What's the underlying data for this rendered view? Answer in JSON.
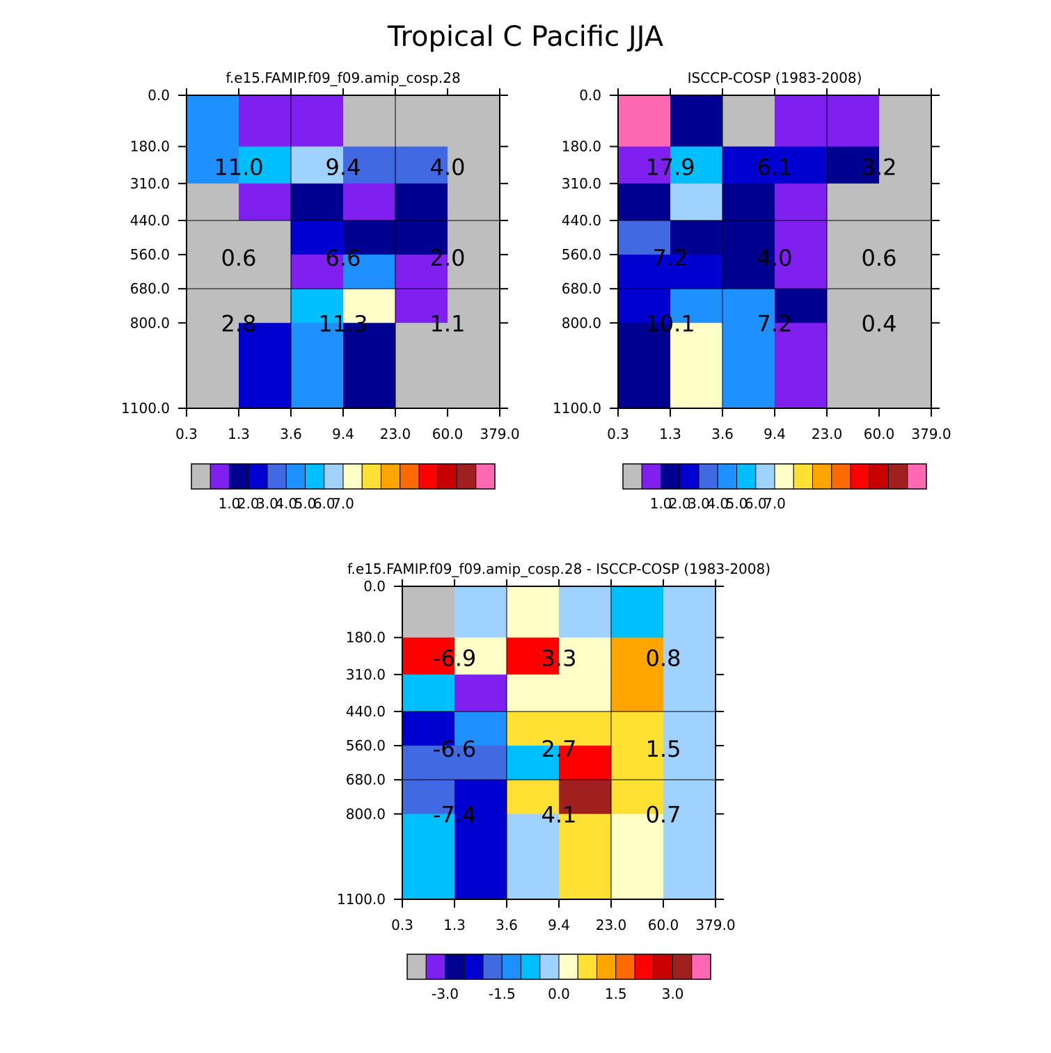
{
  "title": "Tropical C Pacific JJA",
  "chart_data": [
    {
      "type": "heatmap",
      "title": "f.e15.FAMIP.f09_f09.amip_cosp.28",
      "x_ticks": [
        "0.3",
        "1.3",
        "3.6",
        "9.4",
        "23.0",
        "60.0",
        "379.0"
      ],
      "y_ticks": [
        "0.0",
        "180.0",
        "310.0",
        "440.0",
        "560.0",
        "680.0",
        "800.0",
        "1100.0"
      ],
      "cell_levels": [
        [
          5,
          1,
          1,
          0,
          0,
          0
        ],
        [
          5,
          6,
          7,
          4,
          4,
          0
        ],
        [
          0,
          1,
          2,
          1,
          2,
          0
        ],
        [
          0,
          0,
          3,
          2,
          2,
          0
        ],
        [
          0,
          0,
          1,
          5,
          1,
          0
        ],
        [
          0,
          0,
          6,
          8,
          1,
          0
        ],
        [
          0,
          3,
          5,
          2,
          0,
          0
        ]
      ],
      "block_labels": [
        [
          "11.0",
          "9.4",
          "4.0"
        ],
        [
          "0.6",
          "6.6",
          "2.0"
        ],
        [
          "2.8",
          "11.3",
          "1.1"
        ]
      ],
      "colorbar": {
        "colors": [
          "#bebebe",
          "#8020f0",
          "#000090",
          "#0000d0",
          "#4169e1",
          "#1e90ff",
          "#00bfff",
          "#a0d2ff",
          "#ffffc8",
          "#ffe033",
          "#ffa500",
          "#ff6a00",
          "#ff0000",
          "#c80000",
          "#a02020",
          "#ff69b4"
        ],
        "labels": [
          "1.0",
          "2.0",
          "3.0",
          "4.0",
          "5.0",
          "6.0",
          "7.0"
        ]
      }
    },
    {
      "type": "heatmap",
      "title": "ISCCP-COSP (1983-2008)",
      "x_ticks": [
        "0.3",
        "1.3",
        "3.6",
        "9.4",
        "23.0",
        "60.0",
        "379.0"
      ],
      "y_ticks": [
        "0.0",
        "180.0",
        "310.0",
        "440.0",
        "560.0",
        "680.0",
        "800.0",
        "1100.0"
      ],
      "cell_levels": [
        [
          15,
          2,
          0,
          1,
          1,
          0
        ],
        [
          1,
          6,
          3,
          3,
          2,
          0
        ],
        [
          2,
          7,
          2,
          1,
          0,
          0
        ],
        [
          4,
          2,
          2,
          1,
          0,
          0
        ],
        [
          3,
          3,
          2,
          1,
          0,
          0
        ],
        [
          3,
          5,
          5,
          2,
          0,
          0
        ],
        [
          2,
          8,
          5,
          1,
          0,
          0
        ]
      ],
      "block_labels": [
        [
          "17.9",
          "6.1",
          "3.2"
        ],
        [
          "7.2",
          "4.0",
          "0.6"
        ],
        [
          "10.1",
          "7.2",
          "0.4"
        ]
      ],
      "colorbar": {
        "colors": [
          "#bebebe",
          "#8020f0",
          "#000090",
          "#0000d0",
          "#4169e1",
          "#1e90ff",
          "#00bfff",
          "#a0d2ff",
          "#ffffc8",
          "#ffe033",
          "#ffa500",
          "#ff6a00",
          "#ff0000",
          "#c80000",
          "#a02020",
          "#ff69b4"
        ],
        "labels": [
          "1.0",
          "2.0",
          "3.0",
          "4.0",
          "5.0",
          "6.0",
          "7.0"
        ]
      }
    },
    {
      "type": "heatmap",
      "title": "f.e15.FAMIP.f09_f09.amip_cosp.28 - ISCCP-COSP (1983-2008)",
      "x_ticks": [
        "0.3",
        "1.3",
        "3.6",
        "9.4",
        "23.0",
        "60.0",
        "379.0"
      ],
      "y_ticks": [
        "0.0",
        "180.0",
        "310.0",
        "440.0",
        "560.0",
        "680.0",
        "800.0",
        "1100.0"
      ],
      "cell_levels": [
        [
          0,
          7,
          8,
          7,
          6,
          7
        ],
        [
          12,
          8,
          12,
          8,
          10,
          7
        ],
        [
          6,
          1,
          8,
          8,
          10,
          7
        ],
        [
          3,
          5,
          9,
          9,
          9,
          7
        ],
        [
          4,
          4,
          6,
          12,
          9,
          7
        ],
        [
          4,
          3,
          9,
          14,
          9,
          7
        ],
        [
          6,
          3,
          7,
          9,
          8,
          7
        ]
      ],
      "block_labels": [
        [
          "-6.9",
          "3.3",
          "0.8"
        ],
        [
          "-6.6",
          "2.7",
          "1.5"
        ],
        [
          "-7.4",
          "4.1",
          "0.7"
        ]
      ],
      "colorbar": {
        "colors": [
          "#bebebe",
          "#8020f0",
          "#000090",
          "#0000d0",
          "#4169e1",
          "#1e90ff",
          "#00bfff",
          "#a0d2ff",
          "#ffffc8",
          "#ffe033",
          "#ffa500",
          "#ff6a00",
          "#ff0000",
          "#c80000",
          "#a02020",
          "#ff69b4"
        ],
        "labels": [
          "-3.0",
          "-1.5",
          "0.0",
          "1.5",
          "3.0"
        ]
      }
    }
  ]
}
